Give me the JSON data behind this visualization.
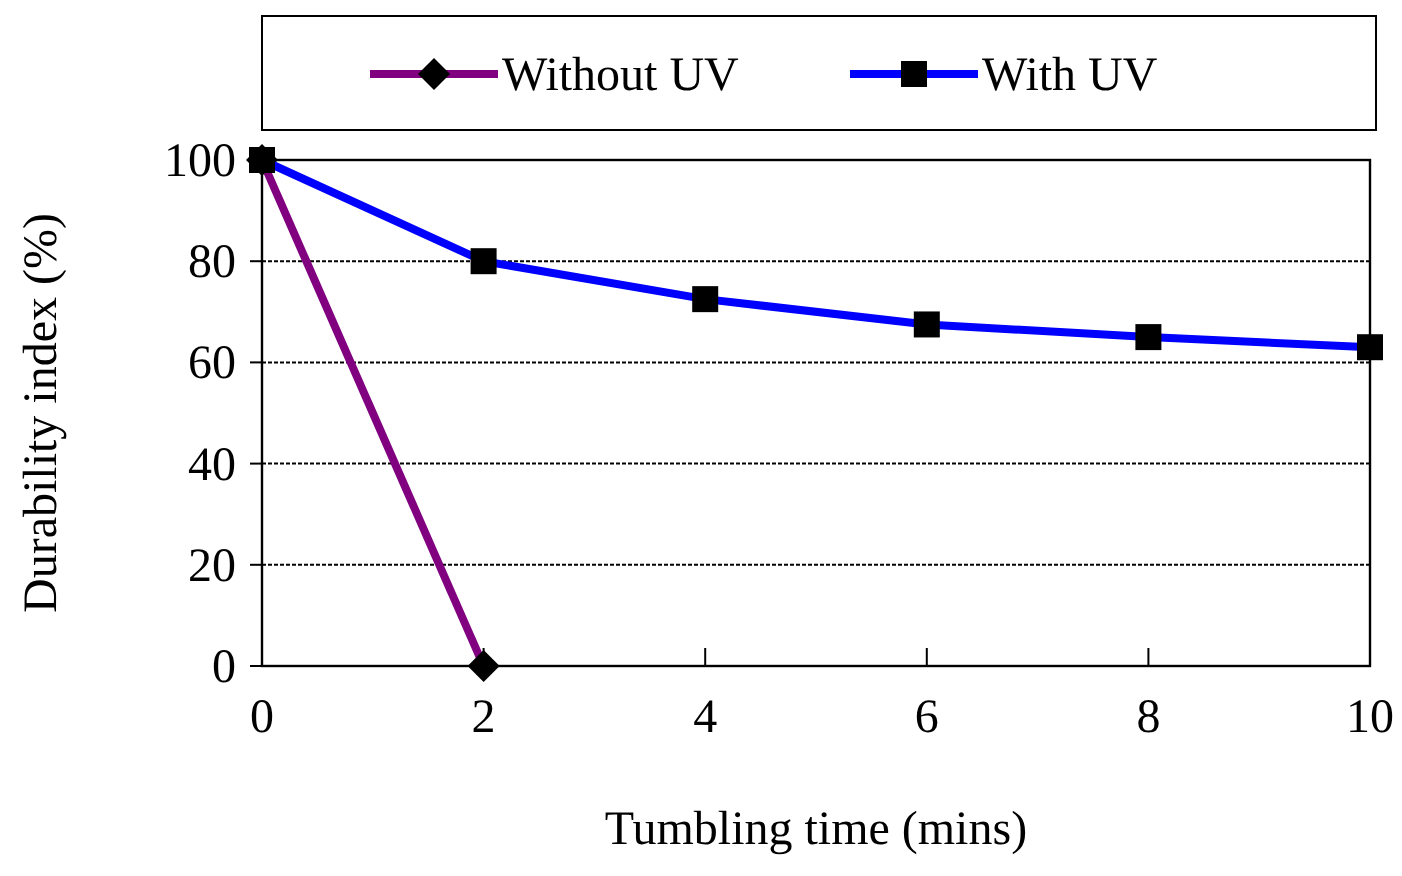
{
  "chart_data": {
    "type": "line",
    "xlabel": "Tumbling time (mins)",
    "ylabel": "Durability index (%)",
    "xlim": [
      0,
      10
    ],
    "xticks": [
      0,
      2,
      4,
      6,
      8,
      10
    ],
    "ylim": [
      0,
      100
    ],
    "yticks": [
      0,
      20,
      40,
      60,
      80,
      100
    ],
    "grid": "y",
    "legend": "top",
    "line_style": "solid",
    "series": [
      {
        "name": "Without UV",
        "color": "#800080",
        "marker": "diamond",
        "x": [
          0,
          2
        ],
        "values": [
          100,
          0
        ]
      },
      {
        "name": "With UV",
        "color": "#0000ff",
        "marker": "square",
        "x": [
          0,
          2,
          4,
          6,
          8,
          10
        ],
        "values": [
          100,
          80,
          72.5,
          67.5,
          65,
          63
        ]
      }
    ]
  }
}
